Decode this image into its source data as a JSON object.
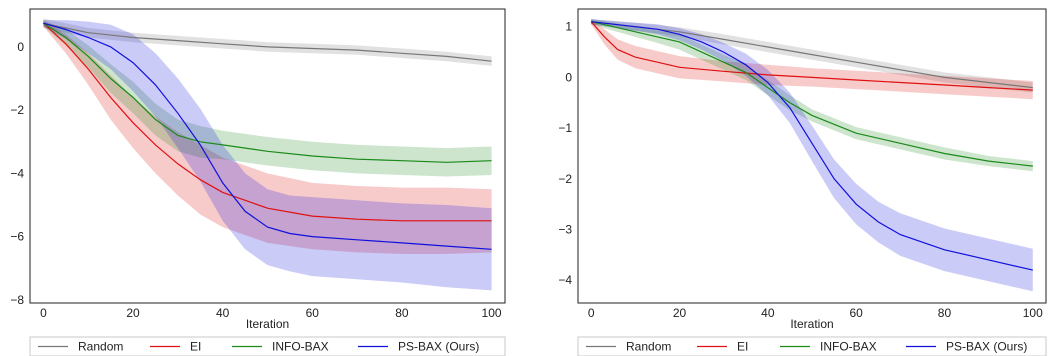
{
  "chart_data": [
    {
      "type": "line",
      "xlabel": "Iteration",
      "ylabel": "",
      "xlim": [
        -3,
        103
      ],
      "ylim": [
        -8.1,
        1.2
      ],
      "xticks": [
        0,
        20,
        40,
        60,
        80,
        100
      ],
      "yticks": [
        1,
        0,
        -2,
        -4,
        -6,
        -8
      ],
      "ytick_labels": [
        "",
        "0",
        "−2",
        "−4",
        "−6",
        "−8"
      ],
      "xtick_labels": [
        "0",
        "20",
        "40",
        "60",
        "80",
        "100"
      ],
      "grid": false,
      "legend": "bottom",
      "series": [
        {
          "name": "Random",
          "color": "#777777",
          "x": [
            0,
            5,
            10,
            20,
            30,
            40,
            50,
            60,
            70,
            80,
            90,
            100
          ],
          "y": [
            0.75,
            0.6,
            0.45,
            0.3,
            0.2,
            0.1,
            0.0,
            -0.05,
            -0.1,
            -0.2,
            -0.3,
            -0.45
          ],
          "band": [
            0.15,
            0.15,
            0.15,
            0.15,
            0.15,
            0.15,
            0.15,
            0.15,
            0.15,
            0.15,
            0.15,
            0.15
          ]
        },
        {
          "name": "EI",
          "color": "#e01010",
          "x": [
            0,
            5,
            10,
            15,
            20,
            25,
            30,
            35,
            40,
            50,
            60,
            70,
            80,
            90,
            100
          ],
          "y": [
            0.75,
            0.1,
            -0.7,
            -1.6,
            -2.4,
            -3.1,
            -3.7,
            -4.2,
            -4.6,
            -5.1,
            -5.35,
            -5.45,
            -5.5,
            -5.5,
            -5.5
          ],
          "band": [
            0.1,
            0.3,
            0.5,
            0.7,
            0.8,
            0.9,
            1.0,
            1.1,
            1.1,
            1.1,
            1.05,
            1.05,
            1.05,
            1.05,
            1.0
          ]
        },
        {
          "name": "INFO-BAX",
          "color": "#1a8a1a",
          "x": [
            0,
            5,
            10,
            15,
            20,
            25,
            30,
            35,
            40,
            50,
            60,
            70,
            80,
            90,
            100
          ],
          "y": [
            0.75,
            0.3,
            -0.3,
            -1.0,
            -1.6,
            -2.3,
            -2.8,
            -3.0,
            -3.1,
            -3.3,
            -3.45,
            -3.55,
            -3.6,
            -3.65,
            -3.6
          ],
          "band": [
            0.1,
            0.25,
            0.35,
            0.45,
            0.5,
            0.5,
            0.5,
            0.5,
            0.45,
            0.45,
            0.45,
            0.45,
            0.45,
            0.45,
            0.45
          ]
        },
        {
          "name": "PS-BAX (Ours)",
          "color": "#1010dd",
          "x": [
            0,
            5,
            10,
            15,
            20,
            25,
            30,
            35,
            40,
            45,
            50,
            55,
            60,
            70,
            80,
            90,
            100
          ],
          "y": [
            0.75,
            0.55,
            0.3,
            0.0,
            -0.5,
            -1.2,
            -2.1,
            -3.1,
            -4.3,
            -5.2,
            -5.7,
            -5.9,
            -6.0,
            -6.1,
            -6.2,
            -6.3,
            -6.4
          ],
          "band": [
            0.1,
            0.3,
            0.5,
            0.7,
            0.9,
            1.0,
            1.1,
            1.15,
            1.2,
            1.2,
            1.2,
            1.2,
            1.25,
            1.25,
            1.25,
            1.3,
            1.3
          ]
        }
      ]
    },
    {
      "type": "line",
      "xlabel": "Iteration",
      "ylabel": "",
      "xlim": [
        -3,
        103
      ],
      "ylim": [
        -4.45,
        1.35
      ],
      "xticks": [
        0,
        20,
        40,
        60,
        80,
        100
      ],
      "yticks": [
        1,
        0,
        -1,
        -2,
        -3,
        -4
      ],
      "ytick_labels": [
        "1",
        "0",
        "−1",
        "−2",
        "−3",
        "−4"
      ],
      "xtick_labels": [
        "0",
        "20",
        "40",
        "60",
        "80",
        "100"
      ],
      "grid": false,
      "legend": "bottom",
      "series": [
        {
          "name": "Random",
          "color": "#777777",
          "x": [
            0,
            5,
            10,
            20,
            30,
            40,
            50,
            60,
            70,
            80,
            90,
            100
          ],
          "y": [
            1.1,
            1.05,
            1.0,
            0.9,
            0.75,
            0.6,
            0.45,
            0.3,
            0.15,
            0.0,
            -0.1,
            -0.2
          ],
          "band": [
            0.05,
            0.07,
            0.08,
            0.09,
            0.1,
            0.1,
            0.1,
            0.1,
            0.1,
            0.1,
            0.1,
            0.1
          ]
        },
        {
          "name": "EI",
          "color": "#e01010",
          "x": [
            0,
            3,
            6,
            10,
            15,
            20,
            30,
            40,
            50,
            60,
            70,
            80,
            90,
            100
          ],
          "y": [
            1.1,
            0.8,
            0.55,
            0.4,
            0.3,
            0.2,
            0.12,
            0.05,
            0.0,
            -0.05,
            -0.1,
            -0.15,
            -0.2,
            -0.25
          ],
          "band": [
            0.05,
            0.15,
            0.2,
            0.22,
            0.22,
            0.22,
            0.2,
            0.2,
            0.18,
            0.18,
            0.18,
            0.18,
            0.18,
            0.18
          ]
        },
        {
          "name": "INFO-BAX",
          "color": "#1a8a1a",
          "x": [
            0,
            5,
            10,
            15,
            20,
            25,
            30,
            35,
            40,
            45,
            50,
            60,
            70,
            80,
            90,
            100
          ],
          "y": [
            1.1,
            1.0,
            0.9,
            0.8,
            0.7,
            0.5,
            0.3,
            0.1,
            -0.2,
            -0.5,
            -0.75,
            -1.1,
            -1.3,
            -1.5,
            -1.65,
            -1.75
          ],
          "band": [
            0.05,
            0.08,
            0.1,
            0.12,
            0.15,
            0.15,
            0.15,
            0.15,
            0.15,
            0.15,
            0.12,
            0.12,
            0.12,
            0.12,
            0.1,
            0.1
          ]
        },
        {
          "name": "PS-BAX (Ours)",
          "color": "#1010dd",
          "x": [
            0,
            5,
            10,
            15,
            20,
            25,
            30,
            35,
            40,
            45,
            50,
            55,
            60,
            65,
            70,
            80,
            90,
            100
          ],
          "y": [
            1.1,
            1.05,
            1.0,
            0.95,
            0.85,
            0.7,
            0.5,
            0.25,
            -0.1,
            -0.6,
            -1.3,
            -2.0,
            -2.5,
            -2.85,
            -3.1,
            -3.4,
            -3.6,
            -3.8
          ],
          "band": [
            0.05,
            0.06,
            0.08,
            0.1,
            0.12,
            0.15,
            0.18,
            0.22,
            0.25,
            0.3,
            0.35,
            0.38,
            0.4,
            0.4,
            0.42,
            0.42,
            0.42,
            0.42
          ]
        }
      ]
    }
  ]
}
